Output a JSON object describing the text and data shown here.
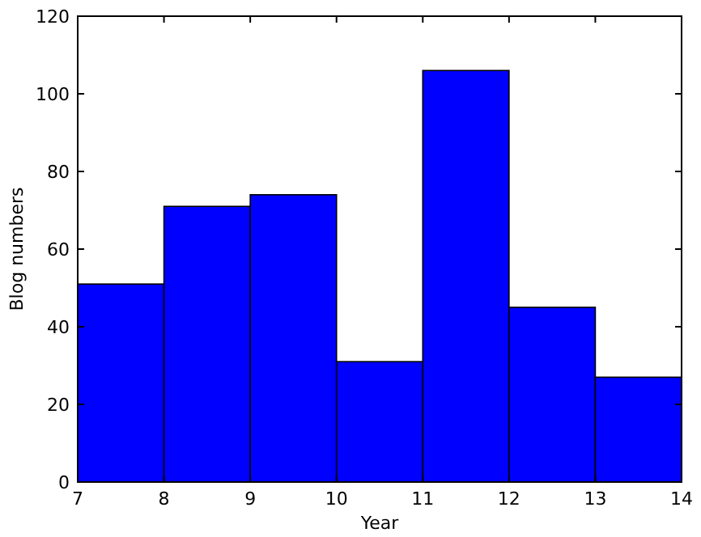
{
  "chart_data": {
    "type": "histogram",
    "xlabel": "Year",
    "ylabel": "Blog numbers",
    "bins": [
      7,
      8,
      9,
      10,
      11,
      12,
      13,
      14
    ],
    "values": [
      51,
      71,
      74,
      31,
      106,
      45,
      27
    ],
    "color": "#0000ff",
    "xlim": [
      7,
      14
    ],
    "xticks": [
      7,
      8,
      9,
      10,
      11,
      12,
      13,
      14
    ],
    "ylim": [
      0,
      120
    ],
    "yticks": [
      0,
      20,
      40,
      60,
      80,
      100,
      120
    ]
  }
}
